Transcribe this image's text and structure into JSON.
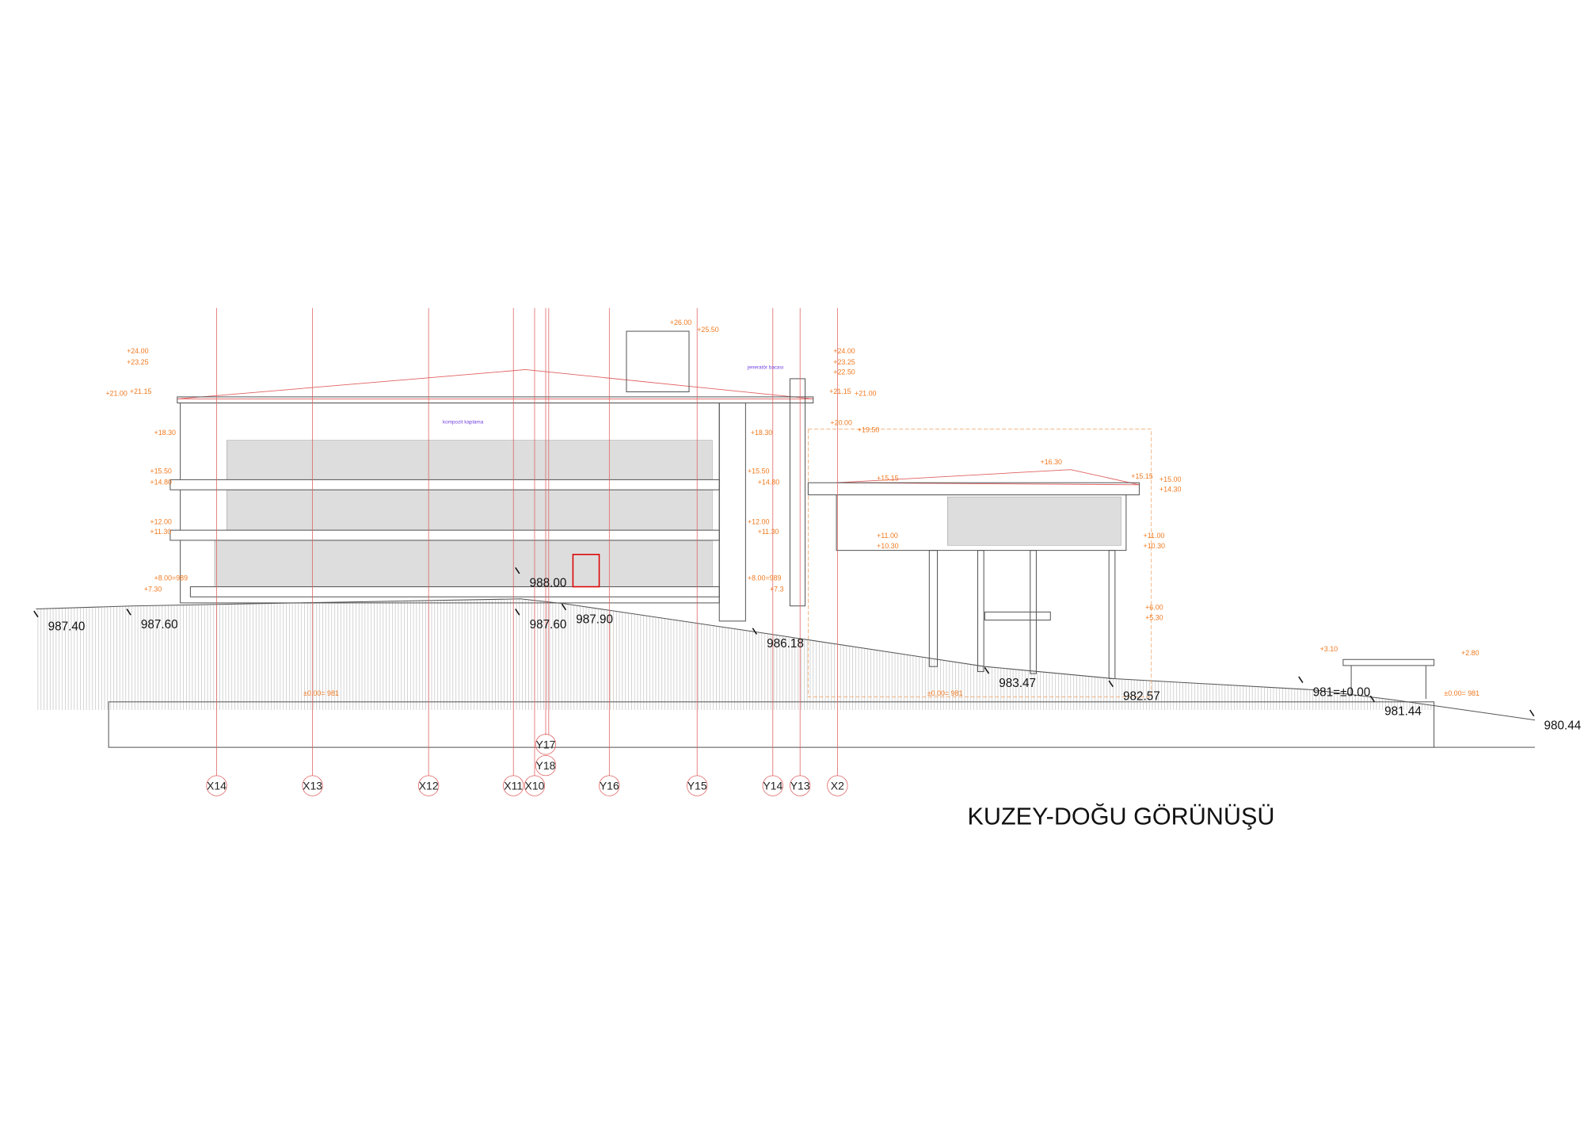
{
  "title": "KUZEY-DOĞU GÖRÜNÜŞÜ",
  "grid_axes": [
    "X14",
    "X13",
    "X12",
    "X11",
    "X10",
    "Y16",
    "Y15",
    "Y14",
    "Y13",
    "X2"
  ],
  "secondary_axes": [
    "Y17",
    "Y18"
  ],
  "ground_elevations": [
    "987.40",
    "987.60",
    "988.00",
    "987.60",
    "987.90",
    "986.18",
    "983.47",
    "982.57",
    "981=±0.00",
    "981.44",
    "980.44"
  ],
  "level_marks": [
    "+24.00",
    "+23.25",
    "+21.00",
    "+21.15",
    "+18.30",
    "+15.50",
    "+14.80",
    "+12.00",
    "+11.30",
    "+8.00=989",
    "+7.30",
    "+26.00",
    "+25.50",
    "+18.30",
    "+15.50",
    "+14.80",
    "+12.00",
    "+11.30",
    "+8.00=989",
    "+7.3",
    "+24.00",
    "+23.25",
    "+22.50",
    "+21.15",
    "+21.00",
    "+20.00",
    "+19.50",
    "+16.30",
    "+15.15",
    "+15.15",
    "+15.00",
    "+14.30",
    "+11.00",
    "+10.30",
    "+11.00",
    "+10.30",
    "+6.00",
    "+5.30",
    "+3.10",
    "+2.80",
    "±0.00= 981",
    "±0.00= 981",
    "±0.00= 981"
  ],
  "notes": [
    "jeneratör bacası",
    "kompozit kaplama"
  ]
}
